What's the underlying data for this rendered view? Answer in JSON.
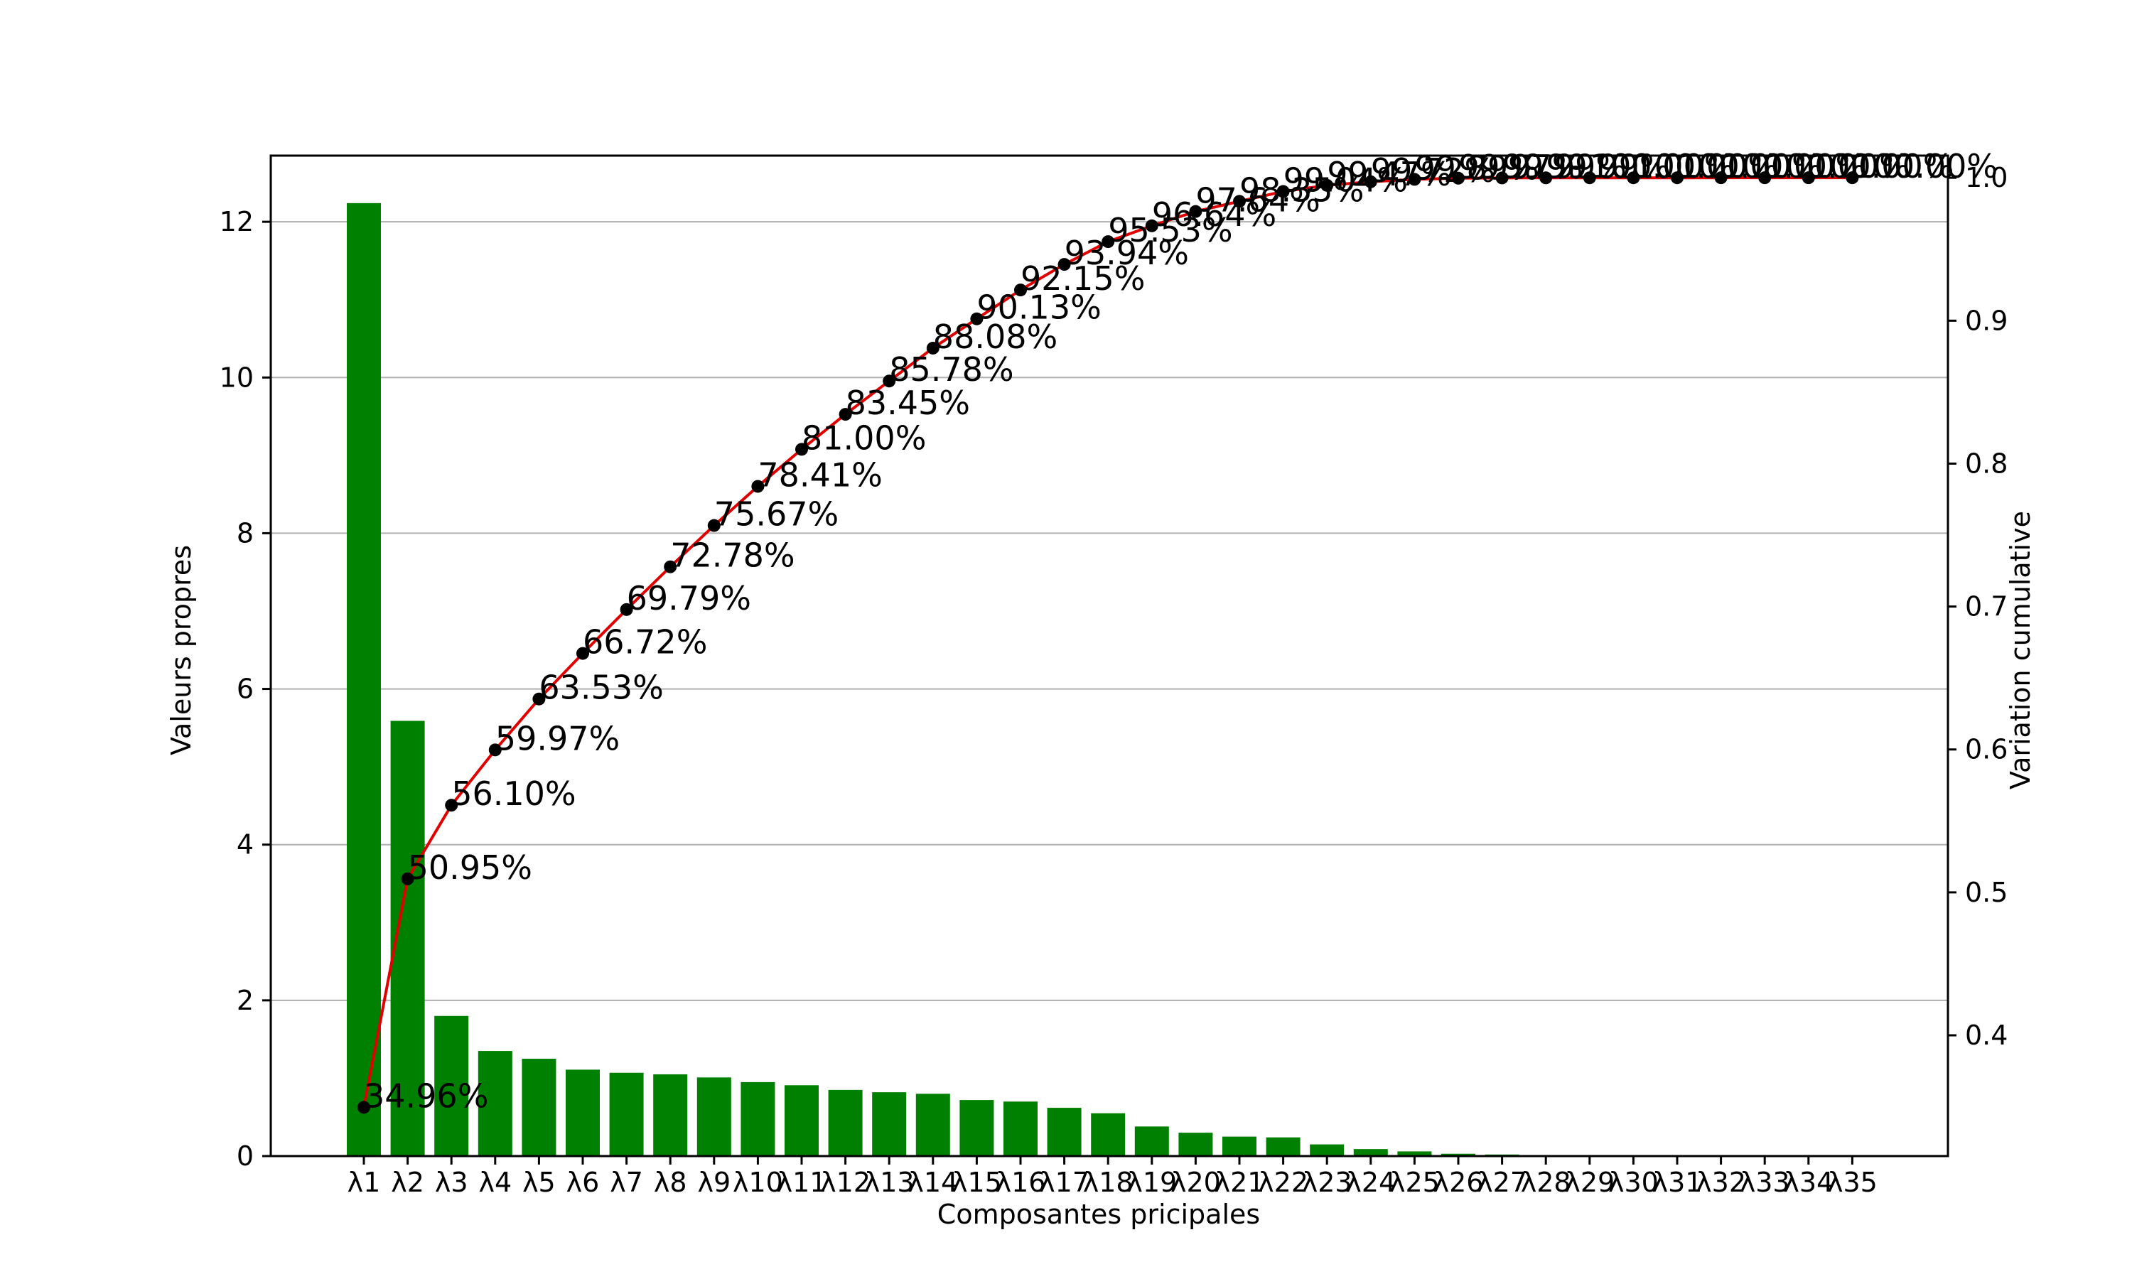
{
  "chart_data": {
    "type": "bar",
    "xlabel": "Composantes pricipales",
    "ylabel": "Valeurs propres",
    "y2label": "Variation cumulative",
    "categories": [
      "λ1",
      "λ2",
      "λ3",
      "λ4",
      "λ5",
      "λ6",
      "λ7",
      "λ8",
      "λ9",
      "λ10",
      "λ11",
      "λ12",
      "λ13",
      "λ14",
      "λ15",
      "λ16",
      "λ17",
      "λ18",
      "λ19",
      "λ20",
      "λ21",
      "λ22",
      "λ23",
      "λ24",
      "λ25",
      "λ26",
      "λ27",
      "λ28",
      "λ29",
      "λ30",
      "λ31",
      "λ32",
      "λ33",
      "λ34",
      "λ35"
    ],
    "series": [
      {
        "type": "bar",
        "axis": "left",
        "color": "#008000",
        "values": [
          12.24,
          5.59,
          1.8,
          1.35,
          1.25,
          1.11,
          1.07,
          1.05,
          1.01,
          0.95,
          0.91,
          0.85,
          0.82,
          0.8,
          0.72,
          0.7,
          0.62,
          0.55,
          0.38,
          0.3,
          0.25,
          0.24,
          0.15,
          0.09,
          0.06,
          0.03,
          0.02,
          0.005,
          0.004,
          0.003,
          0.002,
          0.002,
          0.001,
          0.001,
          0.001
        ]
      },
      {
        "type": "line",
        "axis": "right",
        "color": "#e00000",
        "marker_color": "#000000",
        "values": [
          0.3496,
          0.5095,
          0.561,
          0.5997,
          0.6353,
          0.6672,
          0.6979,
          0.7278,
          0.7567,
          0.7841,
          0.81,
          0.8345,
          0.8578,
          0.8808,
          0.9013,
          0.9215,
          0.9394,
          0.9553,
          0.9664,
          0.9764,
          0.9835,
          0.9904,
          0.9947,
          0.9972,
          0.9989,
          0.9997,
          0.9999,
          0.99995,
          0.99997,
          0.99998,
          0.99999,
          0.999995,
          1.0,
          1.0,
          1.0
        ],
        "labels": [
          "34.96%",
          "50.95%",
          "56.10%",
          "59.97%",
          "63.53%",
          "66.72%",
          "69.79%",
          "72.78%",
          "75.67%",
          "78.41%",
          "81.00%",
          "83.45%",
          "85.78%",
          "88.08%",
          "90.13%",
          "92.15%",
          "93.94%",
          "95.53%",
          "96.64%",
          "97.64%",
          "98.35%",
          "99.04%",
          "99.47%",
          "99.72%",
          "99.89%",
          "99.97%",
          "99.99%",
          "99.99%",
          "100.00%",
          "100.00%",
          "100.00%",
          "100.00%",
          "100.00%",
          "100.00%",
          "100.00%"
        ]
      }
    ],
    "ylim": [
      0,
      12.85
    ],
    "yticks": [
      0,
      2,
      4,
      6,
      8,
      10,
      12
    ],
    "y2lim": [
      0.3155,
      1.0155
    ],
    "y2ticks": [
      0.4,
      0.5,
      0.6,
      0.7,
      0.8,
      0.9,
      1.0
    ],
    "y2tick_labels": [
      "0.4",
      "0.5",
      "0.6",
      "0.7",
      "0.8",
      "0.9",
      "1.0"
    ],
    "grid": true
  }
}
